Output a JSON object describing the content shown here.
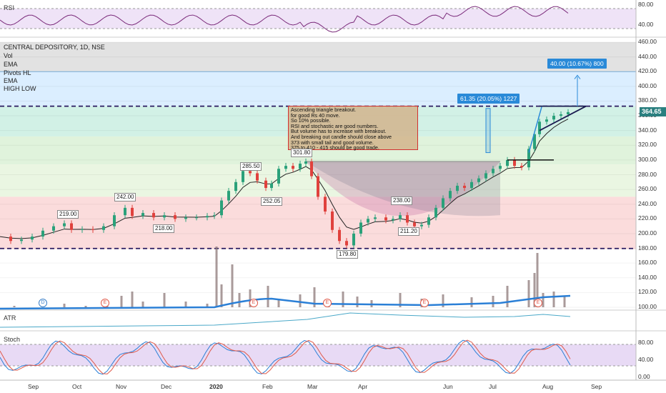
{
  "chart_data": {
    "type": "line",
    "symbol_line": "CENTRAL DEPOSITORY, 1D, NSE",
    "indicators": [
      "Vol",
      "EMA",
      "Pivots HL",
      "EMA",
      "HIGH LOW"
    ],
    "rsi_panel": {
      "label": "RSI",
      "ticks": [
        "80.00",
        "40.00"
      ]
    },
    "atr_panel": {
      "label": "ATR"
    },
    "stoch_panel": {
      "label": "Stoch",
      "ticks": [
        "80.00",
        "40.00",
        "0.00"
      ]
    },
    "price_axis": {
      "ylim": [
        95,
        465
      ],
      "ticks": [
        "460.00",
        "440.00",
        "420.00",
        "400.00",
        "380.00",
        "360.00",
        "340.00",
        "320.00",
        "300.00",
        "280.00",
        "260.00",
        "240.00",
        "220.00",
        "200.00",
        "180.00",
        "160.00",
        "140.00",
        "120.00",
        "100.00"
      ]
    },
    "x_ticks": [
      {
        "label": "Sep",
        "bold": false
      },
      {
        "label": "Oct",
        "bold": false
      },
      {
        "label": "Nov",
        "bold": false
      },
      {
        "label": "Dec",
        "bold": false
      },
      {
        "label": "2020",
        "bold": true
      },
      {
        "label": "Feb",
        "bold": false
      },
      {
        "label": "Mar",
        "bold": false
      },
      {
        "label": "Apr",
        "bold": false
      },
      {
        "label": "Jun",
        "bold": false
      },
      {
        "label": "Jul",
        "bold": false
      },
      {
        "label": "Aug",
        "bold": false
      },
      {
        "label": "Sep",
        "bold": false
      }
    ],
    "last_price": "364.65",
    "horizontal_levels": [
      373,
      179.8
    ],
    "zones": [
      {
        "from": 373,
        "to": 420,
        "color": "#dbeeff"
      },
      {
        "from": 332,
        "to": 373,
        "color": "#d2f1e6"
      },
      {
        "from": 294,
        "to": 332,
        "color": "#e0f3dc"
      },
      {
        "from": 250,
        "to": 294,
        "color": "#eaf6e2"
      },
      {
        "from": 179,
        "to": 250,
        "color": "#fbdcdc"
      }
    ],
    "close_series": [
      {
        "x": 0,
        "y": 196
      },
      {
        "x": 15,
        "y": 190
      },
      {
        "x": 30,
        "y": 192
      },
      {
        "x": 45,
        "y": 196
      },
      {
        "x": 60,
        "y": 204
      },
      {
        "x": 75,
        "y": 210
      },
      {
        "x": 90,
        "y": 214
      },
      {
        "x": 100,
        "y": 205
      },
      {
        "x": 115,
        "y": 206
      },
      {
        "x": 130,
        "y": 205
      },
      {
        "x": 145,
        "y": 210
      },
      {
        "x": 160,
        "y": 225
      },
      {
        "x": 175,
        "y": 235
      },
      {
        "x": 185,
        "y": 224
      },
      {
        "x": 200,
        "y": 228
      },
      {
        "x": 215,
        "y": 222
      },
      {
        "x": 230,
        "y": 225
      },
      {
        "x": 245,
        "y": 220
      },
      {
        "x": 260,
        "y": 222
      },
      {
        "x": 275,
        "y": 222
      },
      {
        "x": 290,
        "y": 224
      },
      {
        "x": 300,
        "y": 225
      },
      {
        "x": 310,
        "y": 245
      },
      {
        "x": 320,
        "y": 258
      },
      {
        "x": 330,
        "y": 270
      },
      {
        "x": 340,
        "y": 285
      },
      {
        "x": 350,
        "y": 282
      },
      {
        "x": 360,
        "y": 272
      },
      {
        "x": 372,
        "y": 262
      },
      {
        "x": 380,
        "y": 268
      },
      {
        "x": 390,
        "y": 288
      },
      {
        "x": 400,
        "y": 292
      },
      {
        "x": 410,
        "y": 288
      },
      {
        "x": 420,
        "y": 295
      },
      {
        "x": 428,
        "y": 298
      },
      {
        "x": 436,
        "y": 278
      },
      {
        "x": 445,
        "y": 250
      },
      {
        "x": 455,
        "y": 230
      },
      {
        "x": 465,
        "y": 205
      },
      {
        "x": 475,
        "y": 190
      },
      {
        "x": 485,
        "y": 184
      },
      {
        "x": 495,
        "y": 200
      },
      {
        "x": 505,
        "y": 215
      },
      {
        "x": 515,
        "y": 220
      },
      {
        "x": 525,
        "y": 222
      },
      {
        "x": 540,
        "y": 218
      },
      {
        "x": 550,
        "y": 220
      },
      {
        "x": 560,
        "y": 225
      },
      {
        "x": 570,
        "y": 215
      },
      {
        "x": 580,
        "y": 210
      },
      {
        "x": 590,
        "y": 212
      },
      {
        "x": 600,
        "y": 222
      },
      {
        "x": 610,
        "y": 235
      },
      {
        "x": 620,
        "y": 248
      },
      {
        "x": 630,
        "y": 258
      },
      {
        "x": 640,
        "y": 265
      },
      {
        "x": 650,
        "y": 262
      },
      {
        "x": 660,
        "y": 270
      },
      {
        "x": 670,
        "y": 275
      },
      {
        "x": 680,
        "y": 282
      },
      {
        "x": 690,
        "y": 288
      },
      {
        "x": 700,
        "y": 292
      },
      {
        "x": 710,
        "y": 300
      },
      {
        "x": 720,
        "y": 292
      },
      {
        "x": 730,
        "y": 290
      },
      {
        "x": 740,
        "y": 315
      },
      {
        "x": 748,
        "y": 335
      },
      {
        "x": 755,
        "y": 352
      },
      {
        "x": 765,
        "y": 355
      },
      {
        "x": 775,
        "y": 360
      },
      {
        "x": 785,
        "y": 362
      },
      {
        "x": 795,
        "y": 365
      }
    ],
    "volume_series": [
      {
        "x": 20,
        "v": 102
      },
      {
        "x": 60,
        "v": 103
      },
      {
        "x": 90,
        "v": 105
      },
      {
        "x": 120,
        "v": 102
      },
      {
        "x": 150,
        "v": 110
      },
      {
        "x": 170,
        "v": 116
      },
      {
        "x": 185,
        "v": 122
      },
      {
        "x": 200,
        "v": 108
      },
      {
        "x": 230,
        "v": 120
      },
      {
        "x": 260,
        "v": 108
      },
      {
        "x": 290,
        "v": 105
      },
      {
        "x": 303,
        "v": 185
      },
      {
        "x": 310,
        "v": 132
      },
      {
        "x": 325,
        "v": 160
      },
      {
        "x": 335,
        "v": 120
      },
      {
        "x": 350,
        "v": 125
      },
      {
        "x": 375,
        "v": 130
      },
      {
        "x": 390,
        "v": 112
      },
      {
        "x": 420,
        "v": 118
      },
      {
        "x": 440,
        "v": 128
      },
      {
        "x": 460,
        "v": 110
      },
      {
        "x": 480,
        "v": 122
      },
      {
        "x": 500,
        "v": 115
      },
      {
        "x": 520,
        "v": 110
      },
      {
        "x": 560,
        "v": 120
      },
      {
        "x": 590,
        "v": 112
      },
      {
        "x": 620,
        "v": 118
      },
      {
        "x": 660,
        "v": 114
      },
      {
        "x": 690,
        "v": 116
      },
      {
        "x": 710,
        "v": 130
      },
      {
        "x": 740,
        "v": 138
      },
      {
        "x": 748,
        "v": 148
      },
      {
        "x": 752,
        "v": 176
      },
      {
        "x": 760,
        "v": 120
      },
      {
        "x": 775,
        "v": 122
      },
      {
        "x": 790,
        "v": 116
      }
    ],
    "annotations": {
      "note_lines": [
        "Ascending triangle breakout.",
        "for good Rs 40 move.",
        "So 10% possible.",
        "RSI and stochastic are good numbers.",
        "But volume  has to increase with breakout.",
        "And breaking out candle should close above",
        "373 with small tail and good volume.",
        "375 to 410 - 415 should be good trade."
      ],
      "measure_1": "61.35 (20.05%) 1227",
      "measure_2": "40.00 (10.67%) 800",
      "pivot_labels": [
        "219.00",
        "242.00",
        "218.00",
        "285.50",
        "252.05",
        "301.80",
        "179.80",
        "238.00",
        "211.20"
      ],
      "event_markers": [
        "D",
        "E",
        "E",
        "E",
        "E",
        "E"
      ]
    }
  }
}
